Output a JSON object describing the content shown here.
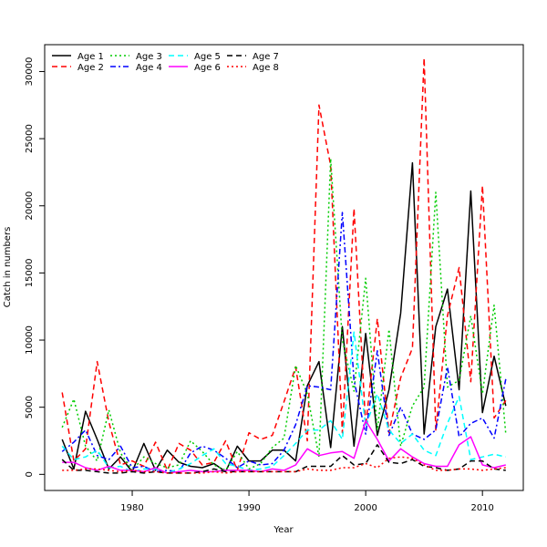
{
  "chart_data": {
    "type": "line",
    "xlabel": "Year",
    "ylabel": "Catch in numbers",
    "xlim": [
      1972.5,
      2013.5
    ],
    "ylim": [
      -1200,
      32000
    ],
    "x_ticks": [
      1980,
      1990,
      2000,
      2010
    ],
    "y_ticks": [
      0,
      5000,
      10000,
      15000,
      20000,
      25000,
      30000
    ],
    "legend_position": "top-left",
    "x": [
      1974,
      1975,
      1976,
      1977,
      1978,
      1979,
      1980,
      1981,
      1982,
      1983,
      1984,
      1985,
      1986,
      1987,
      1988,
      1989,
      1990,
      1991,
      1992,
      1993,
      1994,
      1995,
      1996,
      1997,
      1998,
      1999,
      2000,
      2001,
      2002,
      2003,
      2004,
      2005,
      2006,
      2007,
      2008,
      2009,
      2010,
      2011,
      2012
    ],
    "series": [
      {
        "name": "Age 1",
        "color": "#000000",
        "dash": "solid",
        "values": [
          2600,
          400,
          4700,
          2600,
          400,
          1300,
          200,
          2300,
          300,
          1800,
          900,
          600,
          500,
          800,
          200,
          2100,
          1000,
          1000,
          1800,
          1800,
          1000,
          6600,
          8400,
          2000,
          11000,
          2100,
          10500,
          2900,
          6300,
          12000,
          23200,
          3000,
          11000,
          13800,
          6300,
          21100,
          4600,
          8800,
          5100
        ]
      },
      {
        "name": "Age 2",
        "color": "#ff0000",
        "dash": "dashed",
        "values": [
          6100,
          1000,
          1900,
          8400,
          3900,
          700,
          1000,
          600,
          2400,
          300,
          2300,
          1800,
          700,
          900,
          2500,
          300,
          3100,
          2600,
          2900,
          5400,
          8000,
          2500,
          27500,
          23000,
          3100,
          19800,
          3600,
          11600,
          3100,
          7200,
          9400,
          31000,
          3300,
          11800,
          15400,
          6900,
          21500,
          4200,
          5500
        ]
      },
      {
        "name": "Age 3",
        "color": "#00cc00",
        "dash": "dotted",
        "values": [
          3500,
          5600,
          2100,
          1000,
          4800,
          1600,
          300,
          1300,
          800,
          500,
          700,
          2500,
          1700,
          700,
          300,
          1700,
          400,
          800,
          2000,
          2700,
          8100,
          6000,
          1300,
          23500,
          10000,
          6200,
          14600,
          3300,
          10800,
          2100,
          5100,
          6500,
          21000,
          6500,
          7000,
          11800,
          6000,
          12600,
          3000
        ]
      },
      {
        "name": "Age 4",
        "color": "#0000ff",
        "dash": "dashdot",
        "values": [
          1700,
          2400,
          3300,
          1400,
          1100,
          2100,
          500,
          600,
          200,
          300,
          200,
          1600,
          2100,
          1800,
          1200,
          500,
          1000,
          700,
          800,
          1800,
          3700,
          6600,
          6500,
          6300,
          19500,
          7000,
          3000,
          9200,
          2900,
          5000,
          3000,
          2600,
          3300,
          8000,
          2800,
          3800,
          4200,
          2700,
          7100
        ]
      },
      {
        "name": "Age 5",
        "color": "#00ffff",
        "dash": "dashed",
        "values": [
          2100,
          1100,
          1300,
          1800,
          500,
          600,
          200,
          400,
          400,
          100,
          400,
          800,
          1400,
          1900,
          800,
          600,
          300,
          400,
          600,
          1400,
          2300,
          3300,
          3300,
          4000,
          2600,
          10600,
          3600,
          6000,
          3300,
          2300,
          3000,
          1800,
          1400,
          3800,
          5800,
          1100,
          1300,
          1500,
          1300
        ]
      },
      {
        "name": "Age 6",
        "color": "#ff00ff",
        "dash": "solid",
        "values": [
          900,
          900,
          500,
          300,
          600,
          300,
          300,
          200,
          500,
          100,
          200,
          300,
          200,
          200,
          300,
          300,
          300,
          200,
          400,
          300,
          700,
          1900,
          1400,
          1600,
          1700,
          1200,
          4000,
          2600,
          1000,
          1900,
          1300,
          800,
          600,
          600,
          2200,
          2800,
          700,
          500,
          700
        ]
      },
      {
        "name": "Age 7",
        "color": "#000000",
        "dash": "dashed",
        "values": [
          1100,
          300,
          300,
          200,
          100,
          100,
          200,
          100,
          200,
          100,
          100,
          100,
          200,
          400,
          200,
          200,
          200,
          200,
          200,
          200,
          200,
          600,
          600,
          600,
          1400,
          700,
          800,
          2200,
          900,
          800,
          1100,
          600,
          500,
          300,
          400,
          1000,
          1000,
          400,
          300
        ]
      },
      {
        "name": "Age 8",
        "color": "#ff0000",
        "dash": "dotted",
        "values": [
          300,
          300,
          400,
          400,
          300,
          200,
          300,
          200,
          200,
          100,
          100,
          100,
          100,
          200,
          100,
          200,
          200,
          200,
          200,
          200,
          200,
          400,
          300,
          300,
          500,
          500,
          800,
          500,
          1200,
          1300,
          1200,
          700,
          300,
          300,
          400,
          400,
          300,
          400,
          500
        ]
      }
    ]
  }
}
